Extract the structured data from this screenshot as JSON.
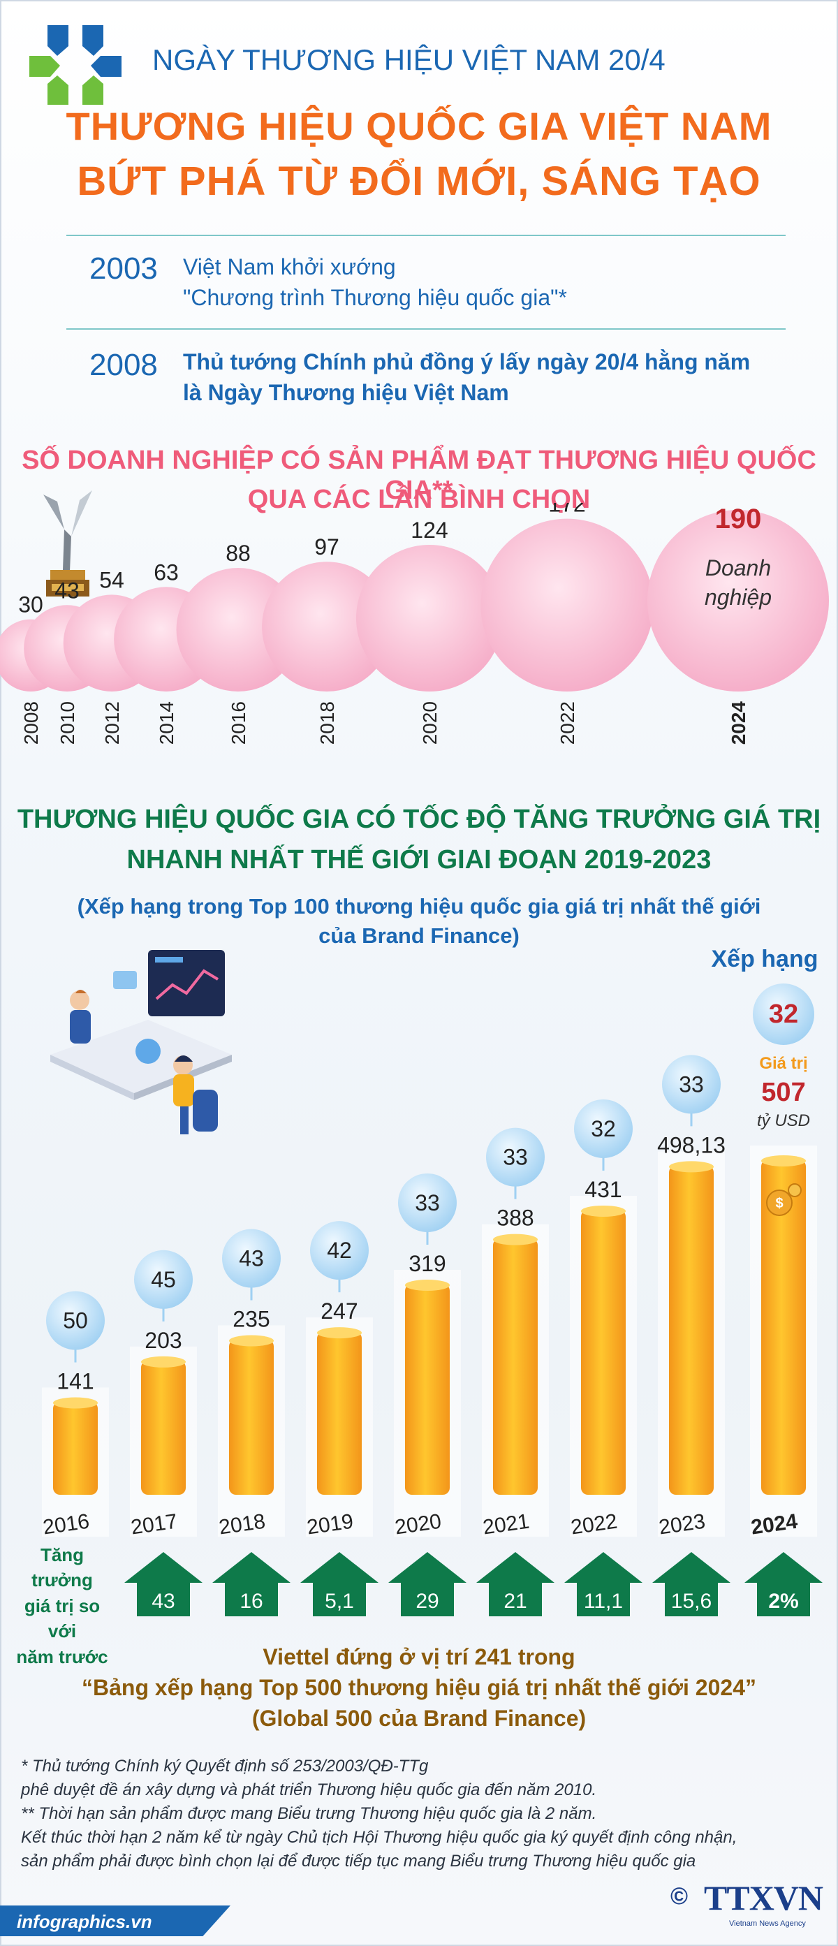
{
  "colors": {
    "blue": "#1b67b2",
    "orange": "#f26b1d",
    "pink": "#ef5b7a",
    "green": "#0e7a4a",
    "gold": "#f5a21b",
    "bubble_pink": "#f7c0d4",
    "bubble_blue": "#b7dcf5",
    "dark_red": "#c1272d"
  },
  "header": {
    "logo_icon": "quadrant-logo-icon",
    "supertitle": "NGÀY THƯƠNG HIỆU VIỆT NAM 20/4",
    "title_line1": "THƯƠNG HIỆU QUỐC GIA VIỆT NAM",
    "title_line2": "BỨT PHÁ TỪ ĐỔI MỚI, SÁNG TẠO"
  },
  "timeline": [
    {
      "year": "2003",
      "line1": "Việt Nam khởi xướng",
      "line2": "\"Chương trình Thương hiệu quốc gia\"*"
    },
    {
      "year": "2008",
      "line1": "Thủ tướng Chính phủ đồng ý lấy ngày 20/4 hằng năm",
      "line2": "là Ngày Thương hiệu Việt Nam"
    }
  ],
  "section1": {
    "title_line1": "SỐ DOANH NGHIỆP CÓ SẢN PHẨM ĐẠT THƯƠNG HIỆU QUỐC GIA**",
    "title_line2": "QUA CÁC LẦN BÌNH CHỌN",
    "trophy_icon": "trophy-icon"
  },
  "section2": {
    "title_line1": "THƯƠNG HIỆU QUỐC GIA CÓ TỐC ĐỘ TĂNG TRƯỞNG GIÁ TRỊ",
    "title_line2": "NHANH NHẤT THẾ GIỚI GIAI ĐOẠN 2019-2023",
    "subtitle_line1": "(Xếp hạng trong Top 100 thương hiệu quốc gia giá trị nhất thế giới",
    "subtitle_line2": "của Brand Finance)",
    "illustration_icon": "office-workers-illustration"
  },
  "chart_data": [
    {
      "type": "bubble",
      "categories": [
        "2008",
        "2010",
        "2012",
        "2014",
        "2016",
        "2018",
        "2020",
        "2022",
        "2024"
      ],
      "values": [
        30,
        43,
        54,
        63,
        88,
        97,
        124,
        172,
        190
      ],
      "highlight": {
        "category": "2024",
        "value_label": "190",
        "unit_line1": "Doanh",
        "unit_line2": "nghiệp"
      }
    },
    {
      "type": "bar",
      "categories": [
        "2016",
        "2017",
        "2018",
        "2019",
        "2020",
        "2021",
        "2022",
        "2023",
        "2024"
      ],
      "values": [
        141,
        203,
        235,
        247,
        319,
        388,
        431,
        498.13,
        507
      ],
      "value_labels": [
        "141",
        "203",
        "235",
        "247",
        "319",
        "388",
        "431",
        "498,13",
        "507"
      ],
      "ranks": [
        "50",
        "45",
        "43",
        "42",
        "33",
        "33",
        "32",
        "33",
        "32"
      ],
      "growth": [
        "43",
        "16",
        "5,1",
        "29",
        "21",
        "11,1",
        "15,6",
        "2%"
      ],
      "rank_label": "Xếp hạng",
      "value_label_prefix": "Giá trị",
      "value_unit": "tỷ USD",
      "growth_label_line1": "Tăng trưởng",
      "growth_label_line2": "giá trị so với",
      "growth_label_line3": "năm trước",
      "coin_icon": "dollar-coin-icon"
    }
  ],
  "viettel": {
    "line1": "Viettel đứng ở vị trí 241 trong",
    "line2": "“Bảng xếp hạng Top 500 thương hiệu giá trị nhất thế giới 2024”",
    "line3": "(Global 500 của Brand Finance)"
  },
  "footnotes": [
    "* Thủ tướng Chính ký Quyết định số 253/2003/QĐ-TTg",
    "phê duyệt đề án xây dựng và phát triển Thương hiệu quốc gia đến năm 2010.",
    "** Thời hạn sản phẩm được mang Biểu trưng Thương hiệu quốc gia là 2 năm.",
    "Kết thúc thời hạn 2 năm kể từ ngày Chủ tịch Hội Thương hiệu quốc gia ký quyết định công nhận,",
    "sản phẩm phải được bình chọn lại để được tiếp tục mang Biểu trưng Thương hiệu quốc gia"
  ],
  "footer": {
    "site": "infographics.vn",
    "copyright": "©",
    "agency": "TTXVN",
    "agency_sub": "Vietnam News Agency"
  }
}
